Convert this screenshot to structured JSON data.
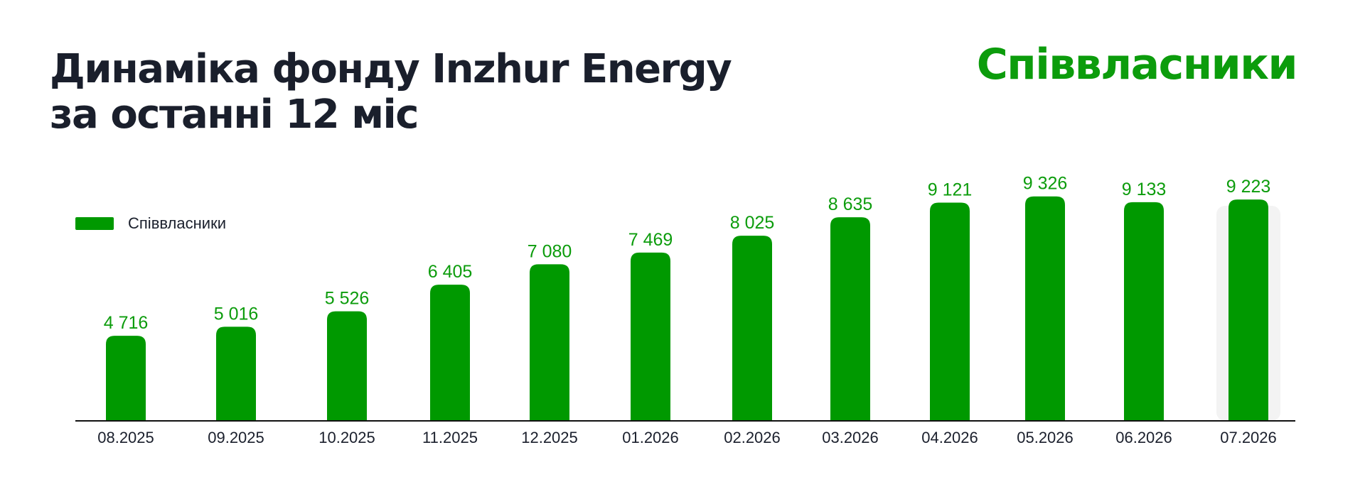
{
  "header": {
    "title_line1": "Динаміка фонду Inzhur Energy",
    "title_line2": "за останні 12 міс",
    "brand": "Співвласники"
  },
  "colors": {
    "bar": "#009900",
    "value_text": "#0c9c0c",
    "highlight_bg": "#f3f3f3",
    "axis": "#111111"
  },
  "chart_data": {
    "type": "bar",
    "categories": [
      "08.2025",
      "09.2025",
      "10.2025",
      "11.2025",
      "12.2025",
      "01.2026",
      "02.2026",
      "03.2026",
      "04.2026",
      "05.2026",
      "06.2026",
      "07.2026"
    ],
    "series": [
      {
        "name": "Співвласники",
        "values": [
          4716,
          5016,
          5526,
          6405,
          7080,
          7469,
          8025,
          8635,
          9121,
          9326,
          9133,
          9223
        ],
        "labels": [
          "4 716",
          "5 016",
          "5 526",
          "6 405",
          "7 080",
          "7 469",
          "8 025",
          "8 635",
          "9 121",
          "9 326",
          "9 133",
          "9 223"
        ]
      }
    ],
    "highlighted_category": "07.2026",
    "legend_position": "top-left",
    "grid": false
  }
}
